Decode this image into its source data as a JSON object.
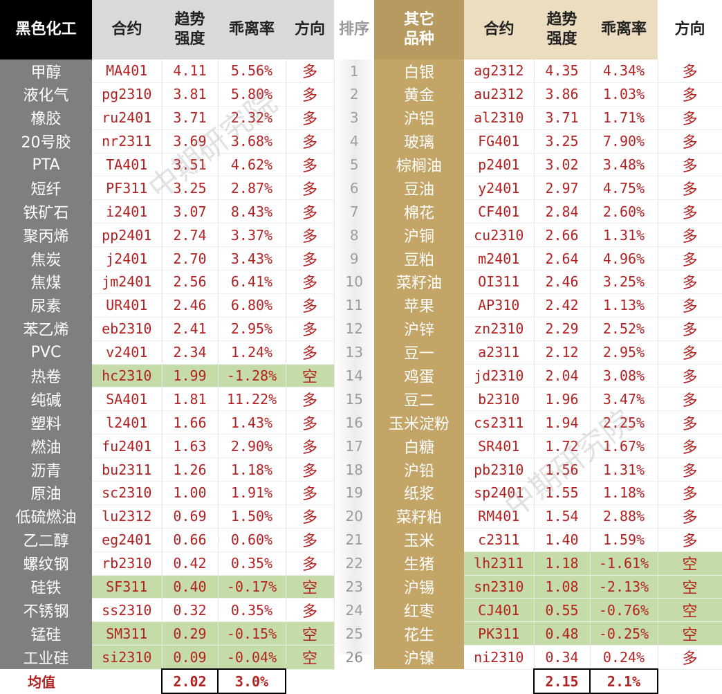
{
  "headers": {
    "left_group": "黑色化工",
    "contract": "合约",
    "strength": [
      "趋势",
      "强度"
    ],
    "deviation": "乖离率",
    "direction": "方向",
    "rank": "排序",
    "right_group": [
      "其它",
      "品种"
    ]
  },
  "left_rows": [
    {
      "name": "甲醇",
      "contract": "MA401",
      "strength": "4.11",
      "deviation": "5.56%",
      "direction": "多",
      "short": false
    },
    {
      "name": "液化气",
      "contract": "pg2310",
      "strength": "3.81",
      "deviation": "5.80%",
      "direction": "多",
      "short": false
    },
    {
      "name": "橡胶",
      "contract": "ru2401",
      "strength": "3.71",
      "deviation": "2.32%",
      "direction": "多",
      "short": false
    },
    {
      "name": "20号胶",
      "contract": "nr2311",
      "strength": "3.69",
      "deviation": "3.68%",
      "direction": "多",
      "short": false
    },
    {
      "name": "PTA",
      "contract": "TA401",
      "strength": "3.51",
      "deviation": "4.62%",
      "direction": "多",
      "short": false
    },
    {
      "name": "短纤",
      "contract": "PF311",
      "strength": "3.25",
      "deviation": "2.87%",
      "direction": "多",
      "short": false
    },
    {
      "name": "铁矿石",
      "contract": "i2401",
      "strength": "3.07",
      "deviation": "8.43%",
      "direction": "多",
      "short": false
    },
    {
      "name": "聚丙烯",
      "contract": "pp2401",
      "strength": "2.74",
      "deviation": "3.37%",
      "direction": "多",
      "short": false
    },
    {
      "name": "焦炭",
      "contract": "j2401",
      "strength": "2.70",
      "deviation": "3.43%",
      "direction": "多",
      "short": false
    },
    {
      "name": "焦煤",
      "contract": "jm2401",
      "strength": "2.56",
      "deviation": "6.41%",
      "direction": "多",
      "short": false
    },
    {
      "name": "尿素",
      "contract": "UR401",
      "strength": "2.46",
      "deviation": "6.80%",
      "direction": "多",
      "short": false
    },
    {
      "name": "苯乙烯",
      "contract": "eb2310",
      "strength": "2.41",
      "deviation": "2.95%",
      "direction": "多",
      "short": false
    },
    {
      "name": "PVC",
      "contract": "v2401",
      "strength": "2.34",
      "deviation": "1.24%",
      "direction": "多",
      "short": false
    },
    {
      "name": "热卷",
      "contract": "hc2310",
      "strength": "1.99",
      "deviation": "-1.28%",
      "direction": "空",
      "short": true
    },
    {
      "name": "纯碱",
      "contract": "SA401",
      "strength": "1.81",
      "deviation": "11.22%",
      "direction": "多",
      "short": false
    },
    {
      "name": "塑料",
      "contract": "l2401",
      "strength": "1.66",
      "deviation": "1.43%",
      "direction": "多",
      "short": false
    },
    {
      "name": "燃油",
      "contract": "fu2401",
      "strength": "1.63",
      "deviation": "2.90%",
      "direction": "多",
      "short": false
    },
    {
      "name": "沥青",
      "contract": "bu2311",
      "strength": "1.26",
      "deviation": "1.18%",
      "direction": "多",
      "short": false
    },
    {
      "name": "原油",
      "contract": "sc2310",
      "strength": "1.00",
      "deviation": "1.91%",
      "direction": "多",
      "short": false
    },
    {
      "name": "低硫燃油",
      "contract": "lu2312",
      "strength": "0.69",
      "deviation": "1.50%",
      "direction": "多",
      "short": false
    },
    {
      "name": "乙二醇",
      "contract": "eg2401",
      "strength": "0.66",
      "deviation": "0.60%",
      "direction": "多",
      "short": false
    },
    {
      "name": "螺纹钢",
      "contract": "rb2310",
      "strength": "0.42",
      "deviation": "0.35%",
      "direction": "多",
      "short": false
    },
    {
      "name": "硅铁",
      "contract": "SF311",
      "strength": "0.40",
      "deviation": "-0.17%",
      "direction": "空",
      "short": true
    },
    {
      "name": "不锈钢",
      "contract": "ss2310",
      "strength": "0.32",
      "deviation": "0.35%",
      "direction": "多",
      "short": false
    },
    {
      "name": "锰硅",
      "contract": "SM311",
      "strength": "0.29",
      "deviation": "-0.15%",
      "direction": "空",
      "short": true
    },
    {
      "name": "工业硅",
      "contract": "si2310",
      "strength": "0.09",
      "deviation": "-0.04%",
      "direction": "空",
      "short": true
    }
  ],
  "right_rows": [
    {
      "name": "白银",
      "contract": "ag2312",
      "strength": "4.35",
      "deviation": "4.34%",
      "direction": "多",
      "short": false
    },
    {
      "name": "黄金",
      "contract": "au2312",
      "strength": "3.86",
      "deviation": "1.03%",
      "direction": "多",
      "short": false
    },
    {
      "name": "沪铝",
      "contract": "al2310",
      "strength": "3.71",
      "deviation": "1.71%",
      "direction": "多",
      "short": false
    },
    {
      "name": "玻璃",
      "contract": "FG401",
      "strength": "3.25",
      "deviation": "7.90%",
      "direction": "多",
      "short": false
    },
    {
      "name": "棕榈油",
      "contract": "p2401",
      "strength": "3.02",
      "deviation": "3.48%",
      "direction": "多",
      "short": false
    },
    {
      "name": "豆油",
      "contract": "y2401",
      "strength": "2.97",
      "deviation": "4.75%",
      "direction": "多",
      "short": false
    },
    {
      "name": "棉花",
      "contract": "CF401",
      "strength": "2.84",
      "deviation": "2.60%",
      "direction": "多",
      "short": false
    },
    {
      "name": "沪铜",
      "contract": "cu2310",
      "strength": "2.66",
      "deviation": "1.31%",
      "direction": "多",
      "short": false
    },
    {
      "name": "豆粕",
      "contract": "m2401",
      "strength": "2.64",
      "deviation": "4.96%",
      "direction": "多",
      "short": false
    },
    {
      "name": "菜籽油",
      "contract": "OI311",
      "strength": "2.46",
      "deviation": "3.25%",
      "direction": "多",
      "short": false
    },
    {
      "name": "苹果",
      "contract": "AP310",
      "strength": "2.42",
      "deviation": "1.13%",
      "direction": "多",
      "short": false
    },
    {
      "name": "沪锌",
      "contract": "zn2310",
      "strength": "2.29",
      "deviation": "2.52%",
      "direction": "多",
      "short": false
    },
    {
      "name": "豆一",
      "contract": "a2311",
      "strength": "2.12",
      "deviation": "2.95%",
      "direction": "多",
      "short": false
    },
    {
      "name": "鸡蛋",
      "contract": "jd2310",
      "strength": "2.04",
      "deviation": "3.08%",
      "direction": "多",
      "short": false
    },
    {
      "name": "豆二",
      "contract": "b2310",
      "strength": "1.96",
      "deviation": "3.47%",
      "direction": "多",
      "short": false
    },
    {
      "name": "玉米淀粉",
      "contract": "cs2311",
      "strength": "1.94",
      "deviation": "2.25%",
      "direction": "多",
      "short": false
    },
    {
      "name": "白糖",
      "contract": "SR401",
      "strength": "1.72",
      "deviation": "1.67%",
      "direction": "多",
      "short": false
    },
    {
      "name": "沪铅",
      "contract": "pb2310",
      "strength": "1.56",
      "deviation": "1.31%",
      "direction": "多",
      "short": false
    },
    {
      "name": "纸浆",
      "contract": "sp2401",
      "strength": "1.55",
      "deviation": "1.18%",
      "direction": "多",
      "short": false
    },
    {
      "name": "菜籽粕",
      "contract": "RM401",
      "strength": "1.54",
      "deviation": "2.88%",
      "direction": "多",
      "short": false
    },
    {
      "name": "玉米",
      "contract": "c2311",
      "strength": "1.40",
      "deviation": "1.59%",
      "direction": "多",
      "short": false
    },
    {
      "name": "生猪",
      "contract": "lh2311",
      "strength": "1.18",
      "deviation": "-1.61%",
      "direction": "空",
      "short": true
    },
    {
      "name": "沪锡",
      "contract": "sn2310",
      "strength": "1.08",
      "deviation": "-2.13%",
      "direction": "空",
      "short": true
    },
    {
      "name": "红枣",
      "contract": "CJ401",
      "strength": "0.55",
      "deviation": "-0.76%",
      "direction": "空",
      "short": true
    },
    {
      "name": "花生",
      "contract": "PK311",
      "strength": "0.48",
      "deviation": "-0.25%",
      "direction": "空",
      "short": true
    },
    {
      "name": "沪镍",
      "contract": "ni2310",
      "strength": "0.34",
      "deviation": "0.24%",
      "direction": "多",
      "short": false
    }
  ],
  "footer": {
    "label": "均值",
    "left_avg_strength": "2.02",
    "left_avg_deviation": "3.0%",
    "right_avg_strength": "2.15",
    "right_avg_deviation": "2.1%"
  },
  "watermark": "中期研究院",
  "colors": {
    "value_red": "#b22222",
    "short_green": "#c5dba8",
    "left_name_bg": "#7f7f7f",
    "right_name_bg": "#c4a568"
  }
}
